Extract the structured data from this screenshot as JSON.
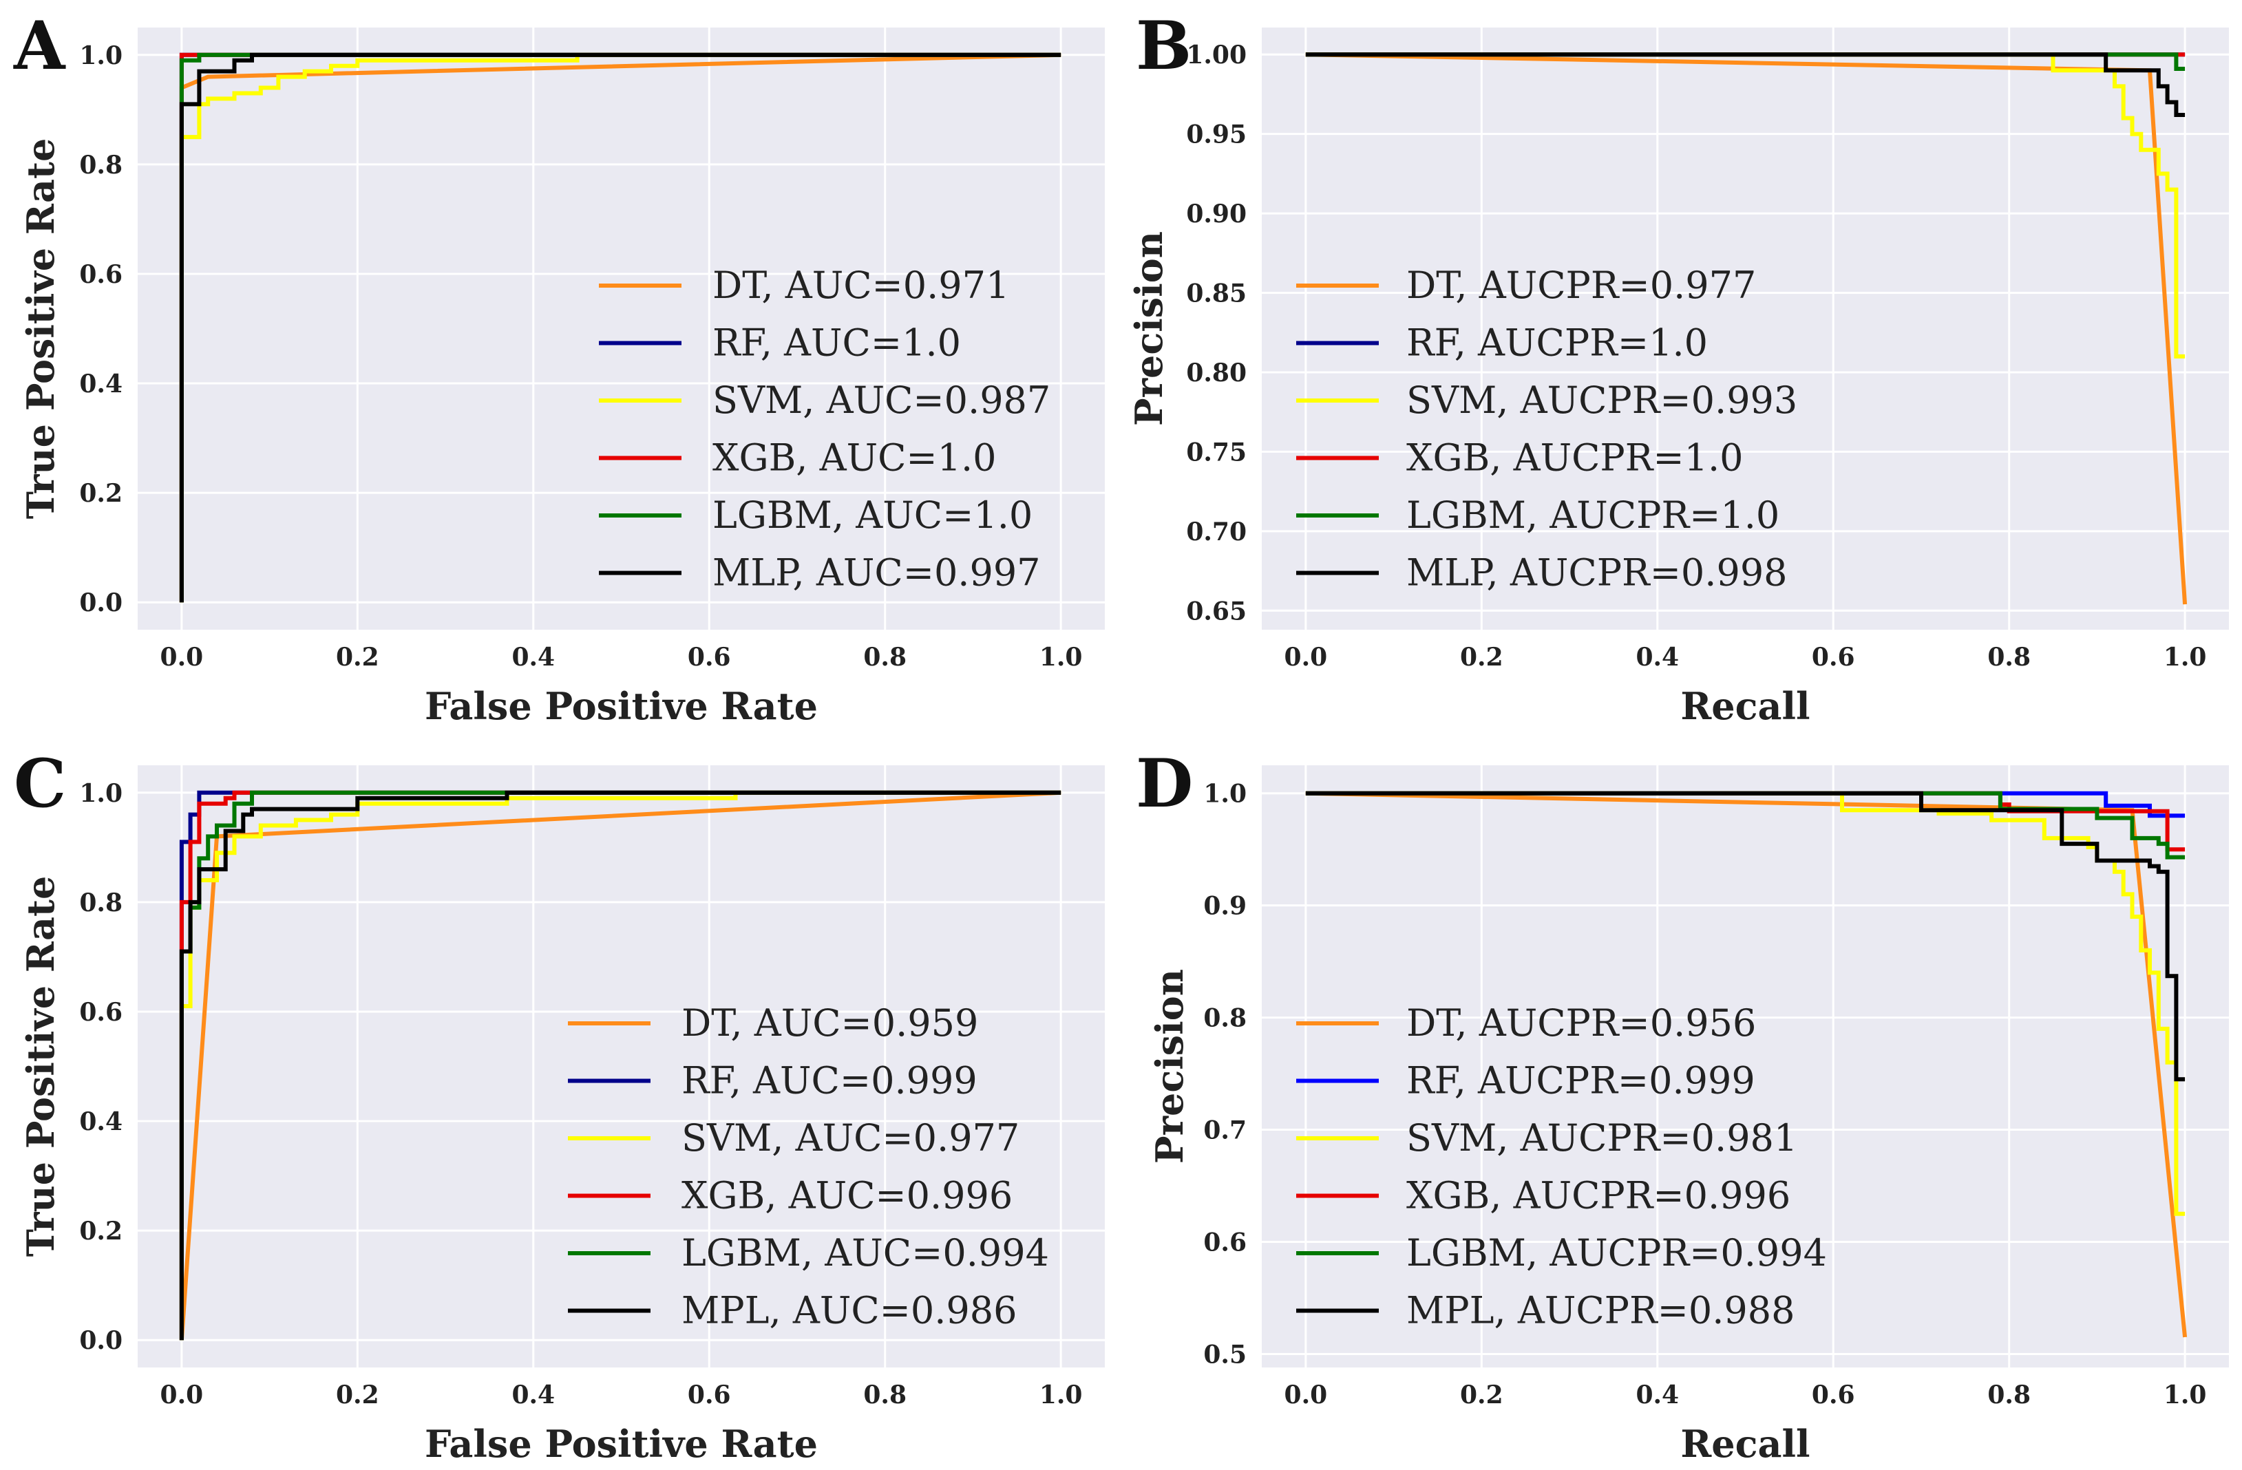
{
  "chart_data": [
    {
      "panel_label": "A",
      "type": "line",
      "title": "",
      "xlabel": "False Positive Rate",
      "ylabel": "True Positive Rate",
      "xlim": [
        -0.05,
        1.05
      ],
      "ylim": [
        -0.05,
        1.05
      ],
      "xticks": [
        0.0,
        0.2,
        0.4,
        0.6,
        0.8,
        1.0
      ],
      "yticks": [
        0.0,
        0.2,
        0.4,
        0.6,
        0.8,
        1.0
      ],
      "xtick_labels": [
        "0.0",
        "0.2",
        "0.4",
        "0.6",
        "0.8",
        "1.0"
      ],
      "ytick_labels": [
        "0.0",
        "0.2",
        "0.4",
        "0.6",
        "0.8",
        "1.0"
      ],
      "legend_position": "lower-right",
      "grid": true,
      "series": [
        {
          "name": "DT",
          "legend": "DT, AUC=0.971",
          "color": "#ff8c1a",
          "x": [
            0,
            0.0,
            0.03,
            1.0
          ],
          "y": [
            0,
            0.94,
            0.96,
            1.0
          ]
        },
        {
          "name": "RF",
          "legend": "RF, AUC=1.0",
          "color": "#00008b",
          "x": [
            0,
            0,
            1.0
          ],
          "y": [
            0,
            1.0,
            1.0
          ]
        },
        {
          "name": "SVM",
          "legend": "SVM, AUC=0.987",
          "color": "#ffff00",
          "x": [
            0,
            0.0,
            0.02,
            0.02,
            0.03,
            0.03,
            0.06,
            0.06,
            0.09,
            0.09,
            0.11,
            0.11,
            0.14,
            0.14,
            0.17,
            0.17,
            0.2,
            0.2,
            0.45,
            0.45,
            1.0
          ],
          "y": [
            0,
            0.85,
            0.85,
            0.91,
            0.91,
            0.92,
            0.92,
            0.93,
            0.93,
            0.94,
            0.94,
            0.96,
            0.96,
            0.97,
            0.97,
            0.98,
            0.98,
            0.99,
            0.99,
            1.0,
            1.0
          ]
        },
        {
          "name": "XGB",
          "legend": "XGB, AUC=1.0",
          "color": "#e60000",
          "x": [
            0,
            0,
            1.0
          ],
          "y": [
            0,
            1.0,
            1.0
          ]
        },
        {
          "name": "LGBM",
          "legend": "LGBM, AUC=1.0",
          "color": "#007700",
          "x": [
            0,
            0.0,
            0.0,
            0.02,
            0.02,
            1.0
          ],
          "y": [
            0,
            0.95,
            0.99,
            0.99,
            1.0,
            1.0
          ]
        },
        {
          "name": "MLP",
          "legend": "MLP, AUC=0.997",
          "color": "#000000",
          "x": [
            0,
            0.0,
            0.02,
            0.02,
            0.06,
            0.06,
            0.08,
            0.08,
            1.0
          ],
          "y": [
            0,
            0.91,
            0.91,
            0.97,
            0.97,
            0.99,
            0.99,
            1.0,
            1.0
          ]
        }
      ]
    },
    {
      "panel_label": "B",
      "type": "line",
      "title": "",
      "xlabel": "Recall",
      "ylabel": "Precision",
      "xlim": [
        -0.05,
        1.05
      ],
      "ylim": [
        0.638,
        1.017
      ],
      "xticks": [
        0.0,
        0.2,
        0.4,
        0.6,
        0.8,
        1.0
      ],
      "yticks": [
        0.65,
        0.7,
        0.75,
        0.8,
        0.85,
        0.9,
        0.95,
        1.0
      ],
      "xtick_labels": [
        "0.0",
        "0.2",
        "0.4",
        "0.6",
        "0.8",
        "1.0"
      ],
      "ytick_labels": [
        "0.65",
        "0.70",
        "0.75",
        "0.80",
        "0.85",
        "0.90",
        "0.95",
        "1.00"
      ],
      "legend_position": "lower-left",
      "grid": true,
      "series": [
        {
          "name": "DT",
          "legend": "DT, AUCPR=0.977",
          "color": "#ff8c1a",
          "x": [
            0.0,
            0.96,
            1.0
          ],
          "y": [
            1.0,
            0.99,
            0.654
          ]
        },
        {
          "name": "RF",
          "legend": "RF, AUCPR=1.0",
          "color": "#00008b",
          "x": [
            0.0,
            1.0
          ],
          "y": [
            1.0,
            1.0
          ]
        },
        {
          "name": "SVM",
          "legend": "SVM, AUCPR=0.993",
          "color": "#ffff00",
          "x": [
            0.0,
            0.85,
            0.85,
            0.92,
            0.92,
            0.93,
            0.93,
            0.94,
            0.94,
            0.95,
            0.95,
            0.97,
            0.97,
            0.98,
            0.98,
            0.99,
            0.99,
            1.0
          ],
          "y": [
            1.0,
            1.0,
            0.99,
            0.99,
            0.98,
            0.98,
            0.96,
            0.96,
            0.95,
            0.95,
            0.94,
            0.94,
            0.925,
            0.925,
            0.915,
            0.915,
            0.81,
            0.81
          ]
        },
        {
          "name": "XGB",
          "legend": "XGB, AUCPR=1.0",
          "color": "#e60000",
          "x": [
            0.0,
            1.0
          ],
          "y": [
            1.0,
            1.0
          ]
        },
        {
          "name": "LGBM",
          "legend": "LGBM, AUCPR=1.0",
          "color": "#007700",
          "x": [
            0.0,
            0.99,
            0.99,
            1.0
          ],
          "y": [
            1.0,
            1.0,
            0.991,
            0.991
          ]
        },
        {
          "name": "MLP",
          "legend": "MLP, AUCPR=0.998",
          "color": "#000000",
          "x": [
            0.0,
            0.91,
            0.91,
            0.97,
            0.97,
            0.98,
            0.98,
            0.99,
            0.99,
            1.0
          ],
          "y": [
            1.0,
            1.0,
            0.99,
            0.99,
            0.98,
            0.98,
            0.97,
            0.97,
            0.962,
            0.962
          ]
        }
      ]
    },
    {
      "panel_label": "C",
      "type": "line",
      "title": "",
      "xlabel": "False Positive Rate",
      "ylabel": "True Positive Rate",
      "xlim": [
        -0.05,
        1.05
      ],
      "ylim": [
        -0.05,
        1.05
      ],
      "xticks": [
        0.0,
        0.2,
        0.4,
        0.6,
        0.8,
        1.0
      ],
      "yticks": [
        0.0,
        0.2,
        0.4,
        0.6,
        0.8,
        1.0
      ],
      "xtick_labels": [
        "0.0",
        "0.2",
        "0.4",
        "0.6",
        "0.8",
        "1.0"
      ],
      "ytick_labels": [
        "0.0",
        "0.2",
        "0.4",
        "0.6",
        "0.8",
        "1.0"
      ],
      "legend_position": "lower-right",
      "grid": true,
      "series": [
        {
          "name": "DT",
          "legend": "DT, AUC=0.959",
          "color": "#ff8c1a",
          "x": [
            0,
            0.04,
            1.0
          ],
          "y": [
            0,
            0.92,
            1.0
          ]
        },
        {
          "name": "RF",
          "legend": "RF, AUC=0.999",
          "color": "#00008b",
          "x": [
            0,
            0.0,
            0.01,
            0.01,
            0.02,
            0.02,
            1.0
          ],
          "y": [
            0,
            0.91,
            0.91,
            0.96,
            0.96,
            1.0,
            1.0
          ]
        },
        {
          "name": "SVM",
          "legend": "SVM, AUC=0.977",
          "color": "#ffff00",
          "x": [
            0,
            0.0,
            0.01,
            0.01,
            0.02,
            0.02,
            0.04,
            0.04,
            0.06,
            0.06,
            0.09,
            0.09,
            0.13,
            0.13,
            0.17,
            0.17,
            0.2,
            0.2,
            0.37,
            0.37,
            0.63,
            0.63,
            1.0
          ],
          "y": [
            0,
            0.61,
            0.61,
            0.79,
            0.79,
            0.84,
            0.84,
            0.89,
            0.89,
            0.92,
            0.92,
            0.94,
            0.94,
            0.95,
            0.95,
            0.96,
            0.96,
            0.98,
            0.98,
            0.99,
            0.99,
            1.0,
            1.0
          ]
        },
        {
          "name": "XGB",
          "legend": "XGB, AUC=0.996",
          "color": "#e60000",
          "x": [
            0,
            0.0,
            0.01,
            0.01,
            0.02,
            0.02,
            0.05,
            0.05,
            0.06,
            0.06,
            1.0
          ],
          "y": [
            0,
            0.8,
            0.8,
            0.91,
            0.91,
            0.98,
            0.98,
            0.99,
            0.99,
            1.0,
            1.0
          ]
        },
        {
          "name": "LGBM",
          "legend": "LGBM, AUC=0.994",
          "color": "#007700",
          "x": [
            0,
            0.0,
            0.01,
            0.01,
            0.02,
            0.02,
            0.03,
            0.03,
            0.04,
            0.04,
            0.06,
            0.06,
            0.08,
            0.08,
            1.0
          ],
          "y": [
            0,
            0.71,
            0.71,
            0.79,
            0.79,
            0.88,
            0.88,
            0.92,
            0.92,
            0.94,
            0.94,
            0.98,
            0.98,
            1.0,
            1.0
          ]
        },
        {
          "name": "MPL",
          "legend": "MPL, AUC=0.986",
          "color": "#000000",
          "x": [
            0,
            0.0,
            0.01,
            0.01,
            0.02,
            0.02,
            0.05,
            0.05,
            0.07,
            0.07,
            0.08,
            0.08,
            0.2,
            0.2,
            0.37,
            0.37,
            1.0
          ],
          "y": [
            0,
            0.71,
            0.71,
            0.8,
            0.8,
            0.86,
            0.86,
            0.93,
            0.93,
            0.96,
            0.96,
            0.97,
            0.97,
            0.99,
            0.99,
            1.0,
            1.0
          ]
        }
      ]
    },
    {
      "panel_label": "D",
      "type": "line",
      "title": "",
      "xlabel": "Recall",
      "ylabel": "Precision",
      "xlim": [
        -0.05,
        1.05
      ],
      "ylim": [
        0.488,
        1.025
      ],
      "xticks": [
        0.0,
        0.2,
        0.4,
        0.6,
        0.8,
        1.0
      ],
      "yticks": [
        0.5,
        0.6,
        0.7,
        0.8,
        0.9,
        1.0
      ],
      "xtick_labels": [
        "0.0",
        "0.2",
        "0.4",
        "0.6",
        "0.8",
        "1.0"
      ],
      "ytick_labels": [
        "0.5",
        "0.6",
        "0.7",
        "0.8",
        "0.9",
        "1.0"
      ],
      "legend_position": "lower-left",
      "grid": true,
      "series": [
        {
          "name": "DT",
          "legend": "DT, AUCPR=0.956",
          "color": "#ff8c1a",
          "x": [
            0.0,
            0.94,
            1.0
          ],
          "y": [
            1.0,
            0.985,
            0.515
          ]
        },
        {
          "name": "RF",
          "legend": "RF, AUCPR=0.999",
          "color": "#0000ff",
          "x": [
            0.0,
            0.91,
            0.91,
            0.96,
            0.96,
            1.0
          ],
          "y": [
            1.0,
            1.0,
            0.989,
            0.989,
            0.98,
            0.98
          ]
        },
        {
          "name": "SVM",
          "legend": "SVM, AUCPR=0.981",
          "color": "#ffff00",
          "x": [
            0.0,
            0.61,
            0.61,
            0.72,
            0.72,
            0.78,
            0.78,
            0.84,
            0.84,
            0.89,
            0.89,
            0.9,
            0.9,
            0.92,
            0.92,
            0.93,
            0.93,
            0.94,
            0.94,
            0.95,
            0.95,
            0.96,
            0.96,
            0.97,
            0.97,
            0.98,
            0.98,
            0.99,
            0.99,
            1.0
          ],
          "y": [
            1.0,
            1.0,
            0.985,
            0.985,
            0.982,
            0.982,
            0.976,
            0.976,
            0.96,
            0.96,
            0.952,
            0.952,
            0.94,
            0.94,
            0.93,
            0.93,
            0.91,
            0.91,
            0.89,
            0.89,
            0.86,
            0.86,
            0.84,
            0.84,
            0.79,
            0.79,
            0.76,
            0.76,
            0.625,
            0.625
          ]
        },
        {
          "name": "XGB",
          "legend": "XGB, AUCPR=0.996",
          "color": "#e60000",
          "x": [
            0.0,
            0.79,
            0.79,
            0.8,
            0.8,
            0.98,
            0.98,
            1.0
          ],
          "y": [
            1.0,
            1.0,
            0.99,
            0.99,
            0.984,
            0.984,
            0.95,
            0.95
          ]
        },
        {
          "name": "LGBM",
          "legend": "LGBM, AUCPR=0.994",
          "color": "#007700",
          "x": [
            0.0,
            0.79,
            0.79,
            0.9,
            0.9,
            0.94,
            0.94,
            0.97,
            0.97,
            0.98,
            0.98,
            1.0
          ],
          "y": [
            1.0,
            1.0,
            0.986,
            0.986,
            0.978,
            0.978,
            0.96,
            0.96,
            0.955,
            0.955,
            0.943,
            0.943
          ]
        },
        {
          "name": "MPL",
          "legend": "MPL, AUCPR=0.988",
          "color": "#000000",
          "x": [
            0.0,
            0.7,
            0.7,
            0.86,
            0.86,
            0.9,
            0.9,
            0.96,
            0.96,
            0.97,
            0.97,
            0.98,
            0.98,
            0.99,
            0.99,
            1.0
          ],
          "y": [
            1.0,
            1.0,
            0.985,
            0.985,
            0.955,
            0.955,
            0.94,
            0.94,
            0.935,
            0.935,
            0.93,
            0.93,
            0.837,
            0.837,
            0.745,
            0.745
          ]
        }
      ]
    }
  ]
}
